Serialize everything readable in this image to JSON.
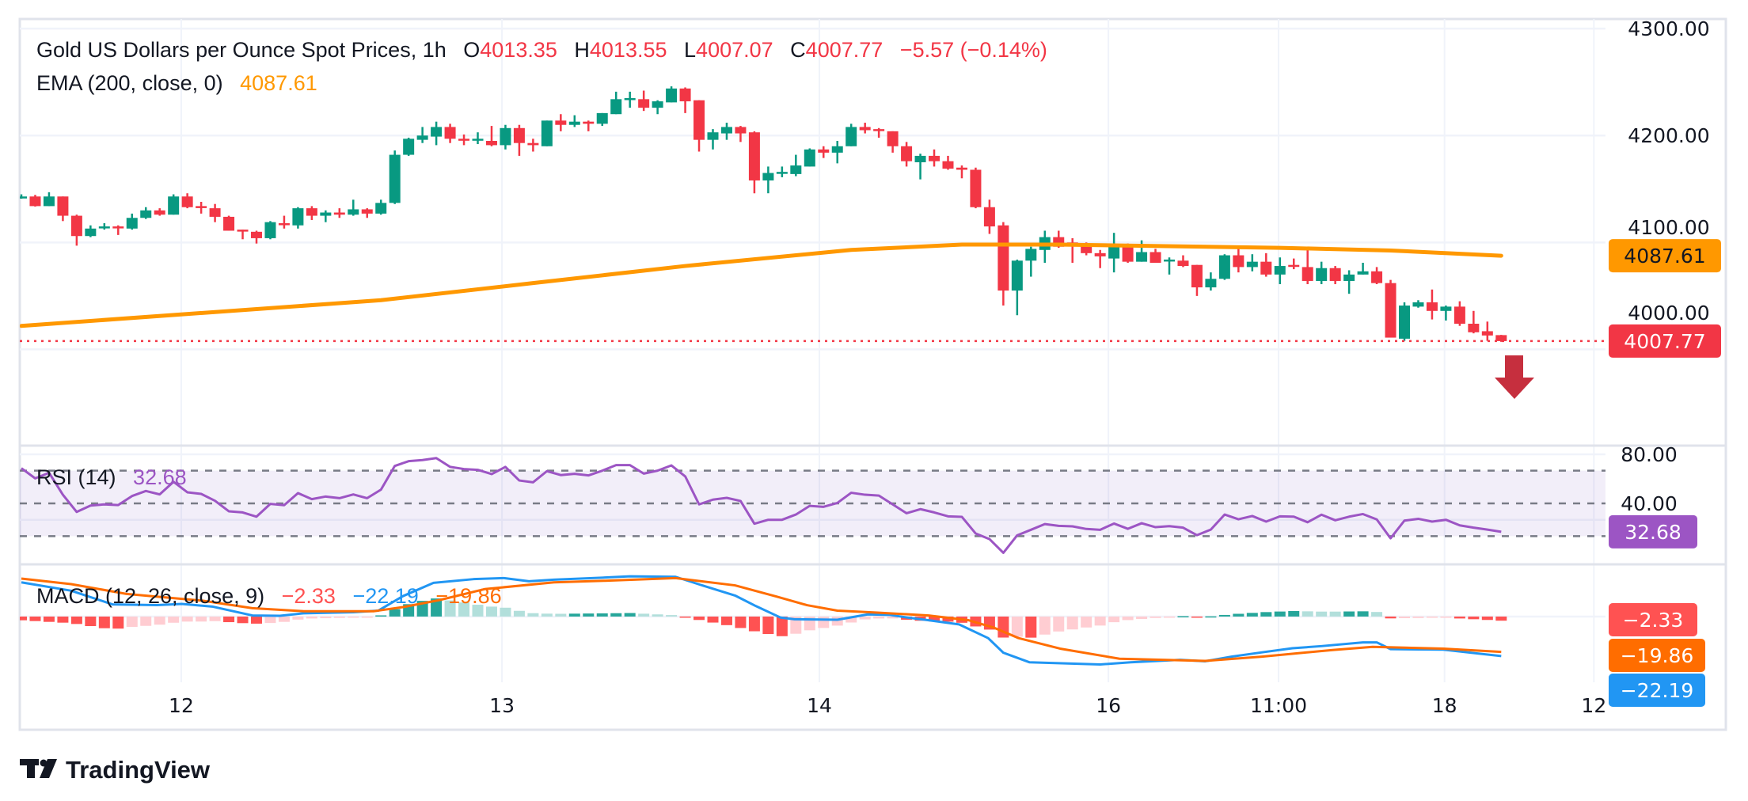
{
  "header": {
    "symbol_title": "Gold US Dollars per Ounce Spot Prices, 1h",
    "o_label": "O",
    "o": "4013.35",
    "h_label": "H",
    "h": "4013.55",
    "l_label": "L",
    "l": "4007.07",
    "c_label": "C",
    "c": "4007.77",
    "change": "−5.57 (−0.14%)"
  },
  "ema_legend": {
    "label": "EMA (200, close, 0)",
    "value": "4087.61"
  },
  "rsi_legend": {
    "label": "RSI (14)",
    "value": "32.68"
  },
  "macd_legend": {
    "label": "MACD (12, 26, close, 9)",
    "hist": "−2.33",
    "macd": "−22.19",
    "signal": "−19.86"
  },
  "price_axis": {
    "ticks": [
      {
        "value": 4300,
        "label": "4300.00"
      },
      {
        "value": 4200,
        "label": "4200.00"
      },
      {
        "value": 4100,
        "label": "4100.00"
      },
      {
        "value": 4000,
        "label": "4000.00"
      }
    ]
  },
  "rsi_axis": {
    "ticks": [
      {
        "value": 80,
        "label": "80.00"
      },
      {
        "value": 40,
        "label": "40.00"
      }
    ]
  },
  "badges": {
    "ema": {
      "value": 4087.61,
      "label": "4087.61"
    },
    "last_price": {
      "value": 4007.77,
      "label": "4007.77"
    },
    "rsi": {
      "value": 32.68,
      "label": "32.68"
    },
    "macd_hist": {
      "value": -2.33,
      "label": "−2.33"
    },
    "macd_signal": {
      "value": -19.86,
      "label": "−19.86"
    },
    "macd_line": {
      "value": -22.19,
      "label": "−22.19"
    }
  },
  "time_axis": [
    {
      "label": "12",
      "index": 11.56
    },
    {
      "label": "13",
      "index": 34.75
    },
    {
      "label": "14",
      "index": 57.7
    },
    {
      "label": "16",
      "index": 78.6
    },
    {
      "label": "11:00",
      "index": 90.9
    },
    {
      "label": "18",
      "index": 102.9
    },
    {
      "label": "12",
      "index": 113.7
    }
  ],
  "brand": "TradingView",
  "colors": {
    "up": "#089981",
    "down": "#f23645",
    "ema": "#ff9800",
    "rsi": "#9c55c4",
    "macd": "#2196f3",
    "signal": "#ff6d00",
    "hist_up_strong": "#26a69a",
    "hist_up_weak": "#b2dfdb",
    "hist_down_strong": "#ff5252",
    "hist_down_weak": "#ffcdd2",
    "arrow": "#c62f3e"
  },
  "chart_data": [
    {
      "type": "candlestick",
      "title": "Gold US Dollars per Ounce Spot Prices, 1h",
      "ylim": [
        3910,
        4309
      ],
      "xlim": [
        -0.1,
        114.7
      ],
      "ohlc": [
        [
          4143,
          4145,
          4141,
          4143
        ],
        [
          4143,
          4144.5,
          4133.6,
          4134
        ],
        [
          4134,
          4147,
          4134,
          4143
        ],
        [
          4143,
          4143,
          4120,
          4125
        ],
        [
          4125,
          4126,
          4097,
          4106
        ],
        [
          4106,
          4116,
          4105,
          4113
        ],
        [
          4114,
          4118,
          4112,
          4115
        ],
        [
          4115,
          4116,
          4107,
          4114
        ],
        [
          4113,
          4127,
          4112,
          4123
        ],
        [
          4123,
          4133,
          4122,
          4130
        ],
        [
          4130,
          4132,
          4125,
          4126
        ],
        [
          4126,
          4145,
          4126,
          4143
        ],
        [
          4143,
          4146,
          4132,
          4133
        ],
        [
          4134,
          4138,
          4127,
          4133
        ],
        [
          4132,
          4136,
          4119,
          4124
        ],
        [
          4124,
          4125,
          4111,
          4111
        ],
        [
          4112,
          4112,
          4103,
          4111
        ],
        [
          4110,
          4111,
          4099,
          4104
        ],
        [
          4104,
          4120,
          4103,
          4119
        ],
        [
          4118,
          4125,
          4113,
          4117
        ],
        [
          4116,
          4133,
          4113,
          4132
        ],
        [
          4132,
          4134,
          4121,
          4125
        ],
        [
          4125,
          4130,
          4119,
          4128
        ],
        [
          4128,
          4132,
          4123,
          4126
        ],
        [
          4126,
          4140,
          4125,
          4131
        ],
        [
          4131,
          4132,
          4123,
          4127
        ],
        [
          4127,
          4140,
          4126,
          4137
        ],
        [
          4137,
          4186,
          4136,
          4182
        ],
        [
          4182,
          4198,
          4181,
          4197
        ],
        [
          4196,
          4208,
          4193,
          4200
        ],
        [
          4199,
          4213,
          4191,
          4208
        ],
        [
          4208,
          4211,
          4193,
          4197
        ],
        [
          4197,
          4201,
          4191,
          4196
        ],
        [
          4196,
          4203,
          4192,
          4197
        ],
        [
          4195,
          4209,
          4190,
          4191
        ],
        [
          4191,
          4210,
          4187,
          4207
        ],
        [
          4207,
          4210,
          4181,
          4193
        ],
        [
          4193,
          4197,
          4185,
          4191
        ],
        [
          4190,
          4214,
          4190,
          4214
        ],
        [
          4214,
          4220,
          4204,
          4210
        ],
        [
          4210,
          4219,
          4208,
          4213
        ],
        [
          4213,
          4214,
          4204,
          4211
        ],
        [
          4211,
          4221,
          4209,
          4221
        ],
        [
          4220,
          4241,
          4220,
          4234
        ],
        [
          4234,
          4241,
          4226,
          4235
        ],
        [
          4234,
          4242,
          4223,
          4226
        ],
        [
          4226,
          4233,
          4220,
          4232
        ],
        [
          4231,
          4246,
          4231,
          4244
        ],
        [
          4244,
          4245,
          4221,
          4232
        ],
        [
          4233,
          4233,
          4185,
          4196
        ],
        [
          4196,
          4206,
          4187,
          4203
        ],
        [
          4202,
          4212,
          4196,
          4208
        ],
        [
          4208,
          4209,
          4194,
          4202
        ],
        [
          4203,
          4204,
          4146,
          4158
        ],
        [
          4158,
          4171,
          4146,
          4165
        ],
        [
          4165,
          4171,
          4161,
          4166
        ],
        [
          4164,
          4182,
          4162,
          4172
        ],
        [
          4171,
          4188,
          4171,
          4187
        ],
        [
          4187,
          4190,
          4179,
          4184
        ],
        [
          4184,
          4195,
          4174,
          4190
        ],
        [
          4190,
          4211,
          4190,
          4208
        ],
        [
          4208,
          4212,
          4202,
          4205
        ],
        [
          4206,
          4207,
          4198,
          4205
        ],
        [
          4204,
          4204,
          4184,
          4190
        ],
        [
          4190,
          4194,
          4171,
          4176
        ],
        [
          4175,
          4183,
          4159,
          4181
        ],
        [
          4181,
          4187,
          4171,
          4176
        ],
        [
          4176,
          4181,
          4168,
          4169
        ],
        [
          4170,
          4172,
          4160,
          4168
        ],
        [
          4168,
          4170,
          4132,
          4133
        ],
        [
          4133,
          4140,
          4108,
          4115
        ],
        [
          4116,
          4119,
          4041,
          4055
        ],
        [
          4055,
          4084,
          4032,
          4083
        ],
        [
          4083,
          4096,
          4068,
          4094
        ],
        [
          4093,
          4111,
          4081,
          4105
        ],
        [
          4105,
          4111,
          4095,
          4096
        ],
        [
          4100,
          4104,
          4081,
          4097
        ],
        [
          4098,
          4100,
          4088,
          4090
        ],
        [
          4090,
          4093,
          4076,
          4087
        ],
        [
          4085,
          4109,
          4072,
          4097
        ],
        [
          4097,
          4099,
          4081,
          4082
        ],
        [
          4082,
          4102,
          4082,
          4091
        ],
        [
          4091,
          4094,
          4081,
          4081
        ],
        [
          4083,
          4086,
          4070,
          4084
        ],
        [
          4083,
          4088,
          4077,
          4078
        ],
        [
          4079,
          4079,
          4050,
          4058
        ],
        [
          4058,
          4072,
          4055,
          4066
        ],
        [
          4066,
          4089,
          4065,
          4088
        ],
        [
          4088,
          4096,
          4072,
          4077
        ],
        [
          4077,
          4089,
          4073,
          4082
        ],
        [
          4082,
          4090,
          4068,
          4070
        ],
        [
          4070,
          4086,
          4061,
          4078
        ],
        [
          4079,
          4085,
          4075,
          4078
        ],
        [
          4077,
          4093,
          4061,
          4064
        ],
        [
          4064,
          4082,
          4061,
          4076
        ],
        [
          4076,
          4078,
          4061,
          4064
        ],
        [
          4064,
          4074,
          4052,
          4070
        ],
        [
          4070,
          4081,
          4070,
          4073
        ],
        [
          4073,
          4077,
          4061,
          4062
        ],
        [
          4062,
          4065,
          4011,
          4011
        ],
        [
          4010,
          4044,
          4008,
          4041
        ],
        [
          4040,
          4046,
          4039,
          4044
        ],
        [
          4044,
          4056,
          4028,
          4036
        ],
        [
          4036,
          4041,
          4027,
          4040
        ],
        [
          4040,
          4045,
          4022,
          4024
        ],
        [
          4024,
          4036,
          4015,
          4016
        ],
        [
          4017,
          4026,
          4008,
          4013
        ],
        [
          4013.35,
          4013.55,
          4007.07,
          4007.77
        ]
      ],
      "ohlc_order": [
        "open",
        "high",
        "low",
        "close"
      ],
      "ema200": [
        [
          0,
          4022
        ],
        [
          26,
          4046
        ],
        [
          37,
          4062
        ],
        [
          48,
          4078
        ],
        [
          60,
          4093
        ],
        [
          68,
          4098
        ],
        [
          75,
          4098
        ],
        [
          91,
          4095
        ],
        [
          99,
          4092.5
        ],
        [
          107,
          4087.61
        ]
      ],
      "last_price": 4007.77,
      "grid": true
    },
    {
      "type": "line",
      "title": "RSI (14)",
      "ylim": [
        12.3,
        85.3
      ],
      "bands": {
        "upper": 70,
        "middle": 50,
        "lower": 30
      },
      "values": [
        71.5,
        65.3,
        68.7,
        55.3,
        44.8,
        48.7,
        49.4,
        49.0,
        54.5,
        57.6,
        55.5,
        63.2,
        56.8,
        55.8,
        51.6,
        45.2,
        44.5,
        41.9,
        49.7,
        48.9,
        56.3,
        52.6,
        54.2,
        53.2,
        55.5,
        53.2,
        58.4,
        72.9,
        75.8,
        76.5,
        77.7,
        72.3,
        71.0,
        70.5,
        67.9,
        72.3,
        64.0,
        62.9,
        69.7,
        67.3,
        68.1,
        67.1,
        70.0,
        73.4,
        73.4,
        68.2,
        70.0,
        73.2,
        66.5,
        49.4,
        52.3,
        53.4,
        51.5,
        37.6,
        40.0,
        40.0,
        43.2,
        48.5,
        47.9,
        50.3,
        56.5,
        55.3,
        54.8,
        49.4,
        44.0,
        46.5,
        44.5,
        42.1,
        41.8,
        31.6,
        28.2,
        19.8,
        30.5,
        33.9,
        37.4,
        36.3,
        36.0,
        34.4,
        33.9,
        37.7,
        34.5,
        37.9,
        35.5,
        36.1,
        35.2,
        30.6,
        34.0,
        43.2,
        40.3,
        42.3,
        38.9,
        42.1,
        41.9,
        38.5,
        43.1,
        39.7,
        41.9,
        43.5,
        40.2,
        28.7,
        39.5,
        40.6,
        38.9,
        40.0,
        36.6,
        35.2,
        34.0,
        32.68
      ]
    },
    {
      "type": "line",
      "title": "MACD (12, 26, close, 9)",
      "ylim": [
        -36.9,
        29.3
      ],
      "macd": [
        [
          0,
          19.2
        ],
        [
          3.6,
          14.5
        ],
        [
          6.6,
          6.8
        ],
        [
          9.8,
          6.4
        ],
        [
          11.6,
          7.1
        ],
        [
          13.8,
          5.6
        ],
        [
          16.7,
          0.6
        ],
        [
          18.7,
          0.4
        ],
        [
          20.4,
          1.8
        ],
        [
          24,
          2.4
        ],
        [
          25.8,
          3.3
        ],
        [
          27.6,
          11.5
        ],
        [
          29.8,
          18.9
        ],
        [
          32.7,
          21.0
        ],
        [
          34.9,
          21.6
        ],
        [
          36.7,
          19.8
        ],
        [
          38.5,
          20.7
        ],
        [
          42.2,
          21.9
        ],
        [
          44,
          22.6
        ],
        [
          47.3,
          22.3
        ],
        [
          49.1,
          17.8
        ],
        [
          51.6,
          11.8
        ],
        [
          53.1,
          5.9
        ],
        [
          54.9,
          -0.6
        ],
        [
          55.9,
          -1.5
        ],
        [
          59,
          -1.8
        ],
        [
          61.2,
          1.2
        ],
        [
          62.8,
          0.9
        ],
        [
          64.1,
          -0.6
        ],
        [
          65.6,
          -2.1
        ],
        [
          67.8,
          -4.4
        ],
        [
          69.9,
          -12.1
        ],
        [
          71,
          -20.3
        ],
        [
          72.9,
          -25.7
        ],
        [
          78,
          -26.9
        ],
        [
          80.2,
          -25.7
        ],
        [
          83.8,
          -24.3
        ],
        [
          85.6,
          -25.1
        ],
        [
          87.5,
          -22.5
        ],
        [
          89.7,
          -20.1
        ],
        [
          91.9,
          -17.8
        ],
        [
          94,
          -16.6
        ],
        [
          97,
          -14.5
        ],
        [
          98,
          -14.5
        ],
        [
          99,
          -18.3
        ],
        [
          102.8,
          -18.6
        ],
        [
          107,
          -22.19
        ]
      ],
      "signal": [
        [
          0,
          21.3
        ],
        [
          3.6,
          18.2
        ],
        [
          7.6,
          12.7
        ],
        [
          13.1,
          8.9
        ],
        [
          16.7,
          4.7
        ],
        [
          20.4,
          3.0
        ],
        [
          25.5,
          3.0
        ],
        [
          27.6,
          5.3
        ],
        [
          30.2,
          9.2
        ],
        [
          33.5,
          15.4
        ],
        [
          38.5,
          19.2
        ],
        [
          42.2,
          20.1
        ],
        [
          47.3,
          21.6
        ],
        [
          51.6,
          17.5
        ],
        [
          54.6,
          11.2
        ],
        [
          56.8,
          6.4
        ],
        [
          59,
          3.3
        ],
        [
          61.9,
          2.2
        ],
        [
          65.6,
          0.6
        ],
        [
          68.5,
          -2.1
        ],
        [
          70.3,
          -6.2
        ],
        [
          72.1,
          -12.1
        ],
        [
          75.1,
          -18.0
        ],
        [
          79.4,
          -23.7
        ],
        [
          85.6,
          -24.9
        ],
        [
          89.7,
          -22.5
        ],
        [
          94.8,
          -18.8
        ],
        [
          97.7,
          -17.0
        ],
        [
          102.8,
          -18.0
        ],
        [
          107,
          -19.86
        ]
      ],
      "histogram": "macd minus signal",
      "last": {
        "macd": -22.19,
        "signal": -19.86,
        "hist": -2.33
      }
    }
  ]
}
